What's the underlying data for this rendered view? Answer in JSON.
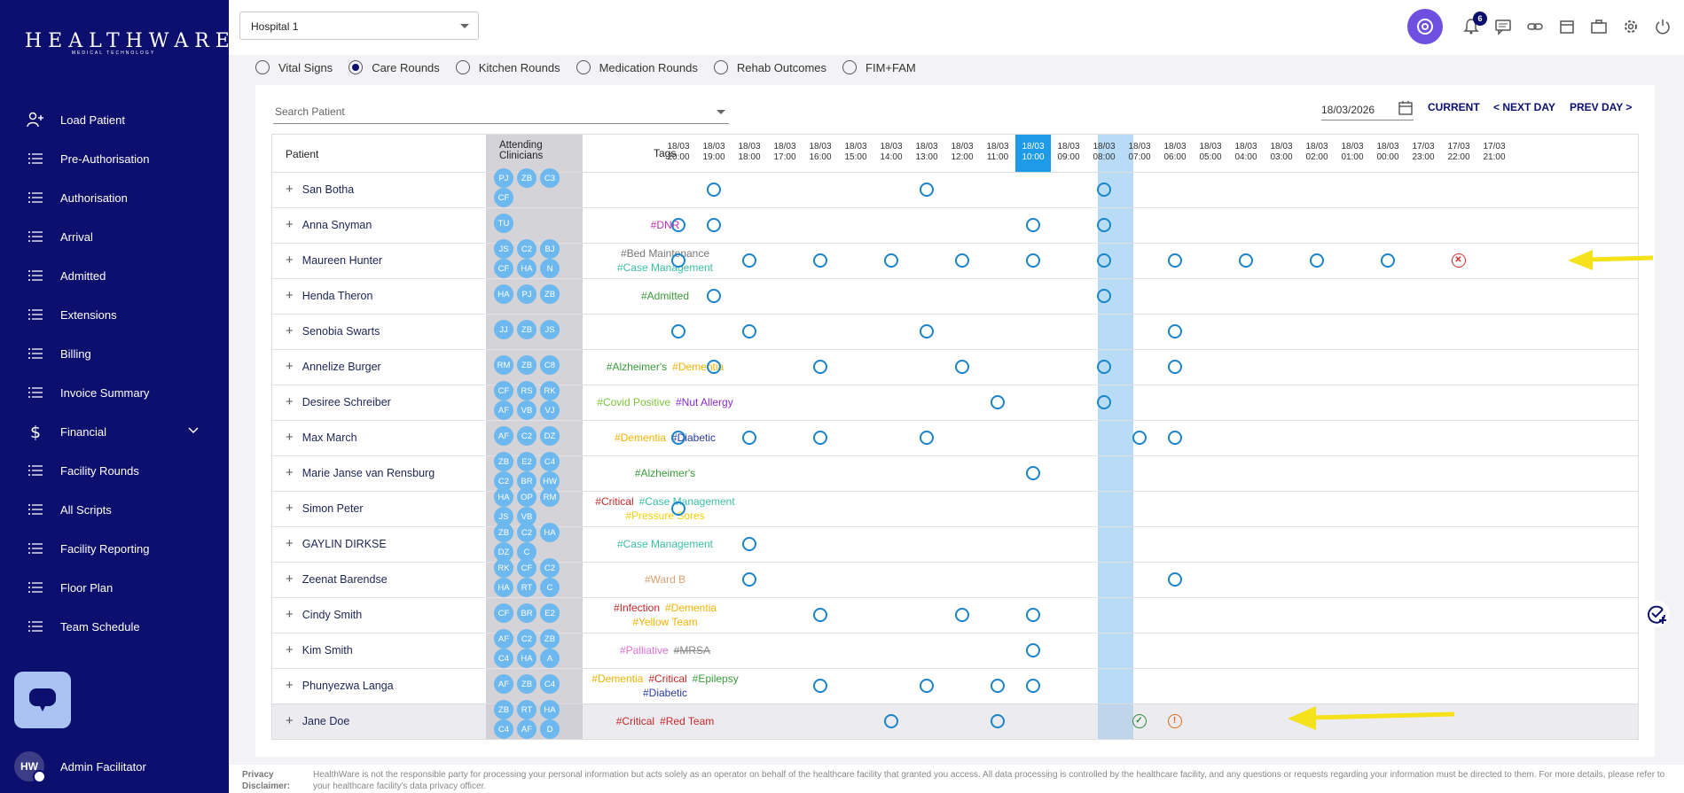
{
  "brand": {
    "name": "HEALTHWARE",
    "tagline": "MEDICAL TECHNOLOGY"
  },
  "sidebar": {
    "items": [
      {
        "label": "Load Patient",
        "icon": "user-plus-icon"
      },
      {
        "label": "Pre-Authorisation",
        "icon": "list-icon"
      },
      {
        "label": "Authorisation",
        "icon": "list-icon"
      },
      {
        "label": "Arrival",
        "icon": "list-icon"
      },
      {
        "label": "Admitted",
        "icon": "list-icon"
      },
      {
        "label": "Extensions",
        "icon": "list-icon"
      },
      {
        "label": "Billing",
        "icon": "list-icon"
      },
      {
        "label": "Invoice Summary",
        "icon": "list-icon"
      },
      {
        "label": "Financial",
        "icon": "dollar-icon"
      },
      {
        "label": "Facility Rounds",
        "icon": "list-icon"
      },
      {
        "label": "All Scripts",
        "icon": "list-icon"
      },
      {
        "label": "Facility Reporting",
        "icon": "list-icon"
      },
      {
        "label": "Floor Plan",
        "icon": "list-icon"
      },
      {
        "label": "Team Schedule",
        "icon": "list-icon"
      }
    ],
    "user": {
      "initials": "HW",
      "name": "Admin Facilitator"
    }
  },
  "header": {
    "hospital": "Hospital 1",
    "notification_count": "6"
  },
  "round_types": [
    {
      "label": "Vital Signs",
      "selected": false
    },
    {
      "label": "Care Rounds",
      "selected": true
    },
    {
      "label": "Kitchen Rounds",
      "selected": false
    },
    {
      "label": "Medication Rounds",
      "selected": false
    },
    {
      "label": "Rehab Outcomes",
      "selected": false
    },
    {
      "label": "FIM+FAM",
      "selected": false
    }
  ],
  "controls": {
    "search_placeholder": "Search Patient",
    "date": "18/03/2026",
    "current": "CURRENT",
    "next_day": "< NEXT DAY",
    "prev_day": "PREV DAY >"
  },
  "table": {
    "col_patient": "Patient",
    "col_clinicians_1": "Attending",
    "col_clinicians_2": "Clinicians",
    "col_tags": "Tags",
    "times": [
      {
        "d": "18/03",
        "t": "20:00"
      },
      {
        "d": "18/03",
        "t": "19:00"
      },
      {
        "d": "18/03",
        "t": "18:00"
      },
      {
        "d": "18/03",
        "t": "17:00"
      },
      {
        "d": "18/03",
        "t": "16:00"
      },
      {
        "d": "18/03",
        "t": "15:00"
      },
      {
        "d": "18/03",
        "t": "14:00"
      },
      {
        "d": "18/03",
        "t": "13:00"
      },
      {
        "d": "18/03",
        "t": "12:00"
      },
      {
        "d": "18/03",
        "t": "11:00"
      },
      {
        "d": "18/03",
        "t": "10:00"
      },
      {
        "d": "18/03",
        "t": "09:00"
      },
      {
        "d": "18/03",
        "t": "08:00"
      },
      {
        "d": "18/03",
        "t": "07:00"
      },
      {
        "d": "18/03",
        "t": "06:00"
      },
      {
        "d": "18/03",
        "t": "05:00"
      },
      {
        "d": "18/03",
        "t": "04:00"
      },
      {
        "d": "18/03",
        "t": "03:00"
      },
      {
        "d": "18/03",
        "t": "02:00"
      },
      {
        "d": "18/03",
        "t": "01:00"
      },
      {
        "d": "18/03",
        "t": "00:00"
      },
      {
        "d": "17/03",
        "t": "23:00"
      },
      {
        "d": "17/03",
        "t": "22:00"
      },
      {
        "d": "17/03",
        "t": "21:00"
      }
    ],
    "current_time_index": 10,
    "rows": [
      {
        "name": "San Botha",
        "clinicians": [
          "PJ",
          "ZB",
          "C3",
          "CF"
        ],
        "tags": [],
        "marks": [
          [
            1,
            "pend"
          ],
          [
            7,
            "pend"
          ],
          [
            12,
            "pend"
          ]
        ]
      },
      {
        "name": "Anna Snyman",
        "clinicians": [
          "TU"
        ],
        "tags": [
          {
            "text": "#DNR",
            "color": "#c02fb4"
          }
        ],
        "marks": [
          [
            0,
            "pend"
          ],
          [
            1,
            "pend"
          ],
          [
            10,
            "pend"
          ],
          [
            12,
            "pend"
          ]
        ]
      },
      {
        "name": "Maureen Hunter",
        "clinicians": [
          "JS",
          "C2",
          "BJ",
          "CF",
          "HA",
          "N"
        ],
        "tags": [
          {
            "text": "#Bed Maintenance",
            "color": "#777777"
          },
          {
            "text": "#Case Management",
            "color": "#3bbfa2"
          }
        ],
        "marks": [
          [
            0,
            "pend"
          ],
          [
            2,
            "pend"
          ],
          [
            4,
            "pend"
          ],
          [
            6,
            "pend"
          ],
          [
            8,
            "pend"
          ],
          [
            10,
            "pend"
          ],
          [
            12,
            "pend"
          ],
          [
            14,
            "pend"
          ],
          [
            16,
            "pend"
          ],
          [
            18,
            "pend"
          ],
          [
            20,
            "pend"
          ],
          [
            22,
            "cross"
          ]
        ]
      },
      {
        "name": "Henda Theron",
        "clinicians": [
          "HA",
          "PJ",
          "ZB"
        ],
        "tags": [
          {
            "text": "#Admitted",
            "color": "#3a9a3a"
          }
        ],
        "marks": [
          [
            1,
            "pend"
          ],
          [
            12,
            "pend"
          ]
        ]
      },
      {
        "name": "Senobia Swarts",
        "clinicians": [
          "JJ",
          "ZB",
          "JS"
        ],
        "tags": [],
        "marks": [
          [
            0,
            "pend"
          ],
          [
            2,
            "pend"
          ],
          [
            7,
            "pend"
          ],
          [
            14,
            "pend"
          ]
        ]
      },
      {
        "name": "Annelize Burger",
        "clinicians": [
          "RM",
          "ZB",
          "C8"
        ],
        "tags": [
          {
            "text": "#Alzheimer's",
            "color": "#3a9a3a"
          },
          {
            "text": "#Dementia",
            "color": "#f2b300"
          }
        ],
        "marks": [
          [
            1,
            "pend"
          ],
          [
            4,
            "pend"
          ],
          [
            8,
            "pend"
          ],
          [
            12,
            "pend"
          ],
          [
            14,
            "pend"
          ]
        ]
      },
      {
        "name": "Desiree Schreiber",
        "clinicians": [
          "CF",
          "RS",
          "RK",
          "AF",
          "VB",
          "VJ"
        ],
        "tags": [
          {
            "text": "#Covid Positive",
            "color": "#7cc23e"
          },
          {
            "text": "#Nut Allergy",
            "color": "#8a2bc8"
          }
        ],
        "marks": [
          [
            9,
            "pend"
          ],
          [
            12,
            "pend"
          ]
        ]
      },
      {
        "name": "Max March",
        "clinicians": [
          "AF",
          "C2",
          "DZ"
        ],
        "tags": [
          {
            "text": "#Dementia",
            "color": "#f2b300"
          },
          {
            "text": "#Diabetic",
            "color": "#2a3aa8"
          }
        ],
        "marks": [
          [
            0,
            "pend"
          ],
          [
            2,
            "pend"
          ],
          [
            4,
            "pend"
          ],
          [
            7,
            "pend"
          ],
          [
            13,
            "pend"
          ],
          [
            14,
            "pend"
          ]
        ]
      },
      {
        "name": "Marie Janse van Rensburg",
        "clinicians": [
          "ZB",
          "E2",
          "C4",
          "C2",
          "BR",
          "HW"
        ],
        "tags": [
          {
            "text": "#Alzheimer's",
            "color": "#3a9a3a"
          }
        ],
        "marks": [
          [
            10,
            "pend"
          ]
        ]
      },
      {
        "name": "Simon Peter",
        "clinicians": [
          "HA",
          "OP",
          "RM",
          "JS",
          "VB"
        ],
        "tags": [
          {
            "text": "#Critical",
            "color": "#c62828"
          },
          {
            "text": "#Case Management",
            "color": "#3bbfa2"
          },
          {
            "text": "#Pressure Sores",
            "color": "#f2d000"
          }
        ],
        "marks": [
          [
            0,
            "pend"
          ]
        ]
      },
      {
        "name": "GAYLIN DIRKSE",
        "clinicians": [
          "ZB",
          "C2",
          "HA",
          "DZ",
          "C"
        ],
        "tags": [
          {
            "text": "#Case Management",
            "color": "#3bbfa2"
          }
        ],
        "marks": [
          [
            2,
            "pend"
          ]
        ]
      },
      {
        "name": "Zeenat Barendse",
        "clinicians": [
          "RK",
          "CF",
          "C2",
          "HA",
          "RT",
          "C"
        ],
        "tags": [
          {
            "text": "#Ward B",
            "color": "#d9a070"
          }
        ],
        "marks": [
          [
            2,
            "pend"
          ],
          [
            14,
            "pend"
          ]
        ]
      },
      {
        "name": "Cindy Smith",
        "clinicians": [
          "CF",
          "BR",
          "E2"
        ],
        "tags": [
          {
            "text": "#Infection",
            "color": "#c62828"
          },
          {
            "text": "#Dementia",
            "color": "#f2b300"
          },
          {
            "text": "#Yellow Team",
            "color": "#f2b300"
          }
        ],
        "marks": [
          [
            4,
            "pend"
          ],
          [
            8,
            "pend"
          ],
          [
            10,
            "pend"
          ]
        ]
      },
      {
        "name": "Kim Smith",
        "clinicians": [
          "AF",
          "C2",
          "ZB",
          "C4",
          "HA",
          "A"
        ],
        "tags": [
          {
            "text": "#Palliative",
            "color": "#e070d8"
          },
          {
            "text": "#MRSA",
            "color": "#888888"
          }
        ],
        "marks": [
          [
            10,
            "pend"
          ]
        ]
      },
      {
        "name": "Phunyezwa Langa",
        "clinicians": [
          "AF",
          "ZB",
          "C4"
        ],
        "tags": [
          {
            "text": "#Dementia",
            "color": "#f2b300"
          },
          {
            "text": "#Critical",
            "color": "#c62828"
          },
          {
            "text": "#Epilepsy",
            "color": "#3a9a3a"
          },
          {
            "text": "#Diabetic",
            "color": "#2a3aa8"
          }
        ],
        "marks": [
          [
            4,
            "pend"
          ],
          [
            7,
            "pend"
          ],
          [
            9,
            "pend"
          ],
          [
            10,
            "pend"
          ]
        ]
      },
      {
        "name": "Jane Doe",
        "clinicians": [
          "ZB",
          "RT",
          "HA",
          "C4",
          "AF",
          "D"
        ],
        "tags": [
          {
            "text": "#Critical",
            "color": "#c62828"
          },
          {
            "text": "#Red Team",
            "color": "#c62828"
          }
        ],
        "marks": [
          [
            6,
            "pend"
          ],
          [
            9,
            "pend"
          ],
          [
            13,
            "done"
          ],
          [
            14,
            "warn"
          ]
        ]
      }
    ]
  },
  "footer": {
    "label": "Privacy Disclaimer:",
    "text": "HealthWare is not the responsible party for processing your personal information but acts solely as an operator on behalf of the healthcare facility that granted you access. All data processing is controlled by the healthcare facility, and any questions or requests regarding your information must be directed to them. For more details, please refer to your healthcare facility's data privacy officer."
  },
  "colors": {
    "sidebar": "#0d0f6e",
    "accent": "#1e9be8",
    "highlight_arrow": "#f5e21a"
  }
}
